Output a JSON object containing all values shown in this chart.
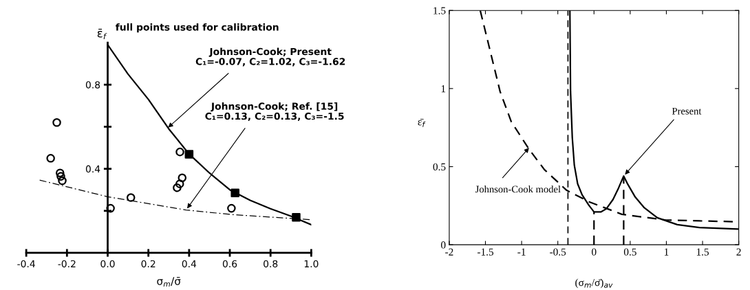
{
  "chart_data": [
    {
      "type": "scatter",
      "xlabel": "σ$_{m}$/σ̄",
      "ylabel": "ε̄$_{f}$",
      "xlim": [
        -0.4,
        1.0
      ],
      "ylim": [
        0,
        1.0
      ],
      "xticks": [
        -0.4,
        -0.2,
        {
          "value": 0,
          "label": "0.0"
        },
        0.2,
        0.4,
        0.6,
        0.8,
        {
          "value": 1,
          "label": "1.0"
        }
      ],
      "yticks": [
        {
          "value": 0.2,
          "label": null
        },
        0.4,
        {
          "value": 0.6,
          "label": null
        },
        0.8
      ],
      "annotations": [
        "full points used for calibration",
        {
          "text": "Johnson-Cook; Present\nC₁=-0.07, C₂=1.02, C₃=-1.62",
          "x": 0.29,
          "y": 0.59
        },
        {
          "text": "Johnson-Cook; Ref. [15]\nC₁=0.13, C₂=0.13, C₃=-1.5",
          "x": 0.385,
          "y": 0.204
        }
      ],
      "grid": false,
      "legend": false,
      "series": [
        {
          "type": "scatter",
          "marker": "circle",
          "color": "#000000",
          "x": [
            -0.25,
            -0.28,
            -0.234,
            -0.23,
            -0.223,
            0.014,
            0.114,
            0.355,
            0.366,
            0.354,
            0.341,
            0.608
          ],
          "values": [
            0.62,
            0.45,
            0.38,
            0.364,
            0.343,
            0.212,
            0.263,
            0.48,
            0.357,
            0.328,
            0.31,
            0.212
          ]
        },
        {
          "type": "scatter",
          "marker": "square",
          "color": "#000000",
          "x": [
            0.4,
            0.626,
            0.926
          ],
          "values": [
            0.469,
            0.285,
            0.169
          ]
        },
        {
          "type": "line",
          "line_style": "solid",
          "color": "#000000",
          "x": [
            0,
            0.1,
            0.2,
            0.3,
            0.4,
            0.5,
            0.6,
            0.7,
            0.8,
            0.9,
            1.0
          ],
          "values": [
            0.99,
            0.85,
            0.73,
            0.59,
            0.47,
            0.38,
            0.3,
            0.25,
            0.21,
            0.175,
            0.134
          ]
        },
        {
          "type": "line",
          "line_style": "dashdot",
          "color": "#000000",
          "x": [
            -0.334,
            0,
            0.385,
            0.613,
            0.995
          ],
          "values": [
            0.346,
            0.267,
            0.204,
            0.182,
            0.158
          ]
        }
      ]
    },
    {
      "type": "line",
      "xlabel": "(σ$_{m}$/σ̄)$_{av}$",
      "ylabel": "ε̄$_{f}$",
      "xlim": [
        -2,
        2
      ],
      "ylim": [
        0,
        1.5
      ],
      "xticks": [
        -2,
        -1.5,
        -1,
        -0.5,
        0,
        0.5,
        1,
        1.5,
        2
      ],
      "yticks": [
        0,
        0.5,
        1,
        1.5
      ],
      "annotations": [
        {
          "text": "Present",
          "x": 0.41,
          "y": 0.44
        },
        {
          "text": "Johnson-Cook model",
          "x": -0.88,
          "y": 0.63
        }
      ],
      "grid": false,
      "legend": false,
      "ref_lines": [
        {
          "axis": "x",
          "value": -0.36,
          "color": "#000000",
          "line_style": "dashed"
        }
      ],
      "series": [
        {
          "line_style": "solid",
          "color": "#000000",
          "x": [
            -0.333,
            -0.324,
            -0.3,
            -0.272,
            -0.226,
            -0.165,
            -0.073,
            0,
            0.094,
            0.17,
            0.263,
            0.34,
            0.41,
            0.46,
            0.57,
            0.69,
            0.875,
            1.15,
            1.456,
            2
          ],
          "values": [
            1.5,
            0.98,
            0.686,
            0.51,
            0.39,
            0.32,
            0.254,
            0.21,
            0.21,
            0.23,
            0.29,
            0.364,
            0.44,
            0.393,
            0.305,
            0.239,
            0.173,
            0.129,
            0.11,
            0.1
          ]
        },
        {
          "line_style": "dashed",
          "color": "#000000",
          "x": [
            -1.572,
            -1.45,
            -1.297,
            -1.144,
            -0.9,
            -0.685,
            -0.379,
            -0.073,
            0.385,
            0.997,
            2
          ],
          "values": [
            1.5,
            1.27,
            0.98,
            0.789,
            0.613,
            0.481,
            0.349,
            0.276,
            0.195,
            0.158,
            0.147
          ]
        },
        {
          "line_style": "dashed",
          "color": "#000000",
          "x": [
            0,
            0
          ],
          "values": [
            0,
            0.21
          ]
        },
        {
          "line_style": "dashed",
          "color": "#000000",
          "x": [
            0.41,
            0.41
          ],
          "values": [
            0,
            0.44
          ]
        }
      ]
    }
  ]
}
